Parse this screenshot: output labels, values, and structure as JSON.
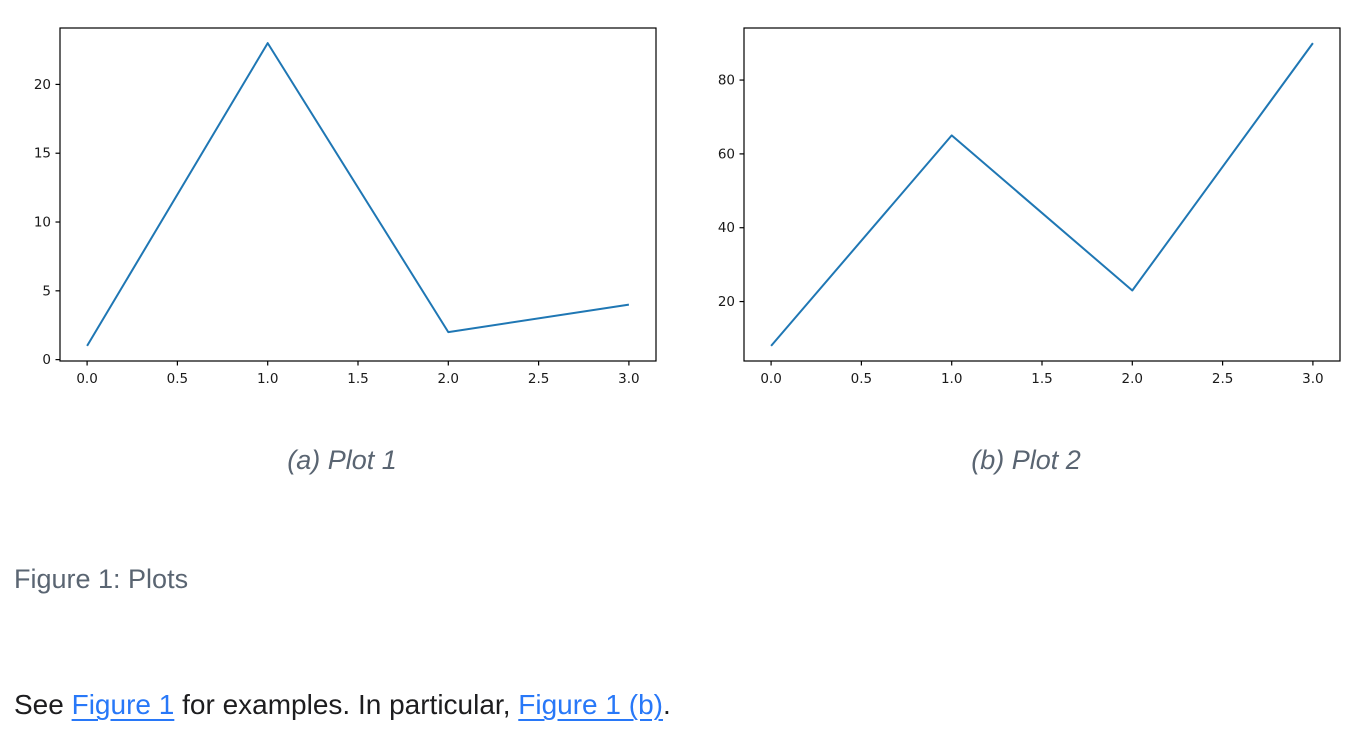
{
  "figure": {
    "caption": "Figure 1: Plots",
    "subfigures": [
      {
        "caption": "(a) Plot 1"
      },
      {
        "caption": "(b) Plot 2"
      }
    ]
  },
  "paragraph": {
    "segments": [
      {
        "type": "text",
        "text": "See "
      },
      {
        "type": "link",
        "text": "Figure 1",
        "name": "link-figure-1"
      },
      {
        "type": "text",
        "text": " for examples. In particular, "
      },
      {
        "type": "link",
        "text": "Figure 1 (b)",
        "name": "link-figure-1b"
      },
      {
        "type": "text",
        "text": "."
      }
    ]
  },
  "colors": {
    "line": "#1f77b4",
    "axis": "#000000",
    "tick_text": "#1a1a1a",
    "caption_gray": "#5a6572",
    "body_text": "#1d1d1f",
    "link_blue": "#2878f8",
    "background": "#ffffff"
  },
  "chart_data": [
    {
      "type": "line",
      "title": "(a) Plot 1",
      "x": [
        0,
        1,
        2,
        3
      ],
      "y": [
        1,
        23,
        2,
        4
      ],
      "xlim": [
        -0.15,
        3.15
      ],
      "ylim": [
        -0.1,
        24.1
      ],
      "xticks": [
        0.0,
        0.5,
        1.0,
        1.5,
        2.0,
        2.5,
        3.0
      ],
      "xtick_labels": [
        "0.0",
        "0.5",
        "1.0",
        "1.5",
        "2.0",
        "2.5",
        "3.0"
      ],
      "yticks": [
        0,
        5,
        10,
        15,
        20
      ],
      "ytick_labels": [
        "0",
        "5",
        "10",
        "15",
        "20"
      ],
      "xlabel": "",
      "ylabel": "",
      "grid": false,
      "legend": null,
      "line_color": "#1f77b4"
    },
    {
      "type": "line",
      "title": "(b) Plot 2",
      "x": [
        0,
        1,
        2,
        3
      ],
      "y": [
        8,
        65,
        23,
        90
      ],
      "xlim": [
        -0.15,
        3.15
      ],
      "ylim": [
        3.9,
        94.1
      ],
      "xticks": [
        0.0,
        0.5,
        1.0,
        1.5,
        2.0,
        2.5,
        3.0
      ],
      "xtick_labels": [
        "0.0",
        "0.5",
        "1.0",
        "1.5",
        "2.0",
        "2.5",
        "3.0"
      ],
      "yticks": [
        20,
        40,
        60,
        80
      ],
      "ytick_labels": [
        "20",
        "40",
        "60",
        "80"
      ],
      "xlabel": "",
      "ylabel": "",
      "grid": false,
      "legend": null,
      "line_color": "#1f77b4"
    }
  ]
}
